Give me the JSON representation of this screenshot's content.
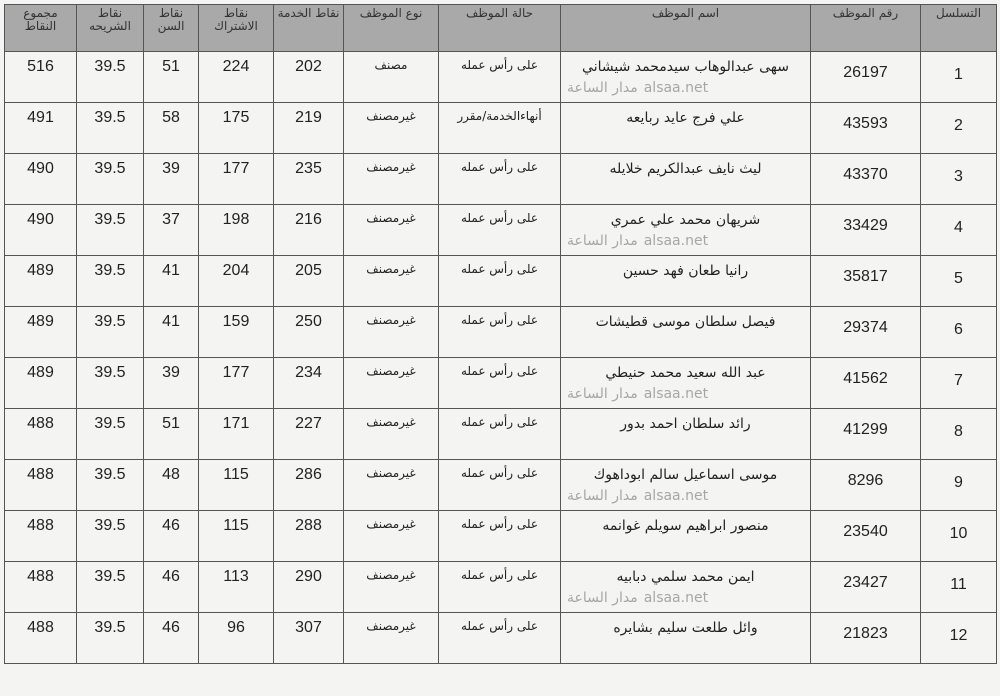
{
  "headers": {
    "serial": "التسلسل",
    "employee_id": "رقم الموظف",
    "employee_name": "اسم الموظف",
    "employee_status": "حالة الموظف",
    "employee_type": "نوع الموظف",
    "service_points": "نقاط الخدمة",
    "subscription_points": "نقاط الاشتراك",
    "age_points": "نقاط السن",
    "segment_points": "نقاط الشريحه",
    "total_points": "مجموع النقاط"
  },
  "rows": [
    {
      "serial": "1",
      "id": "26197",
      "name": "سهى عبدالوهاب سيدمحمد شيشاني",
      "status": "على رأس عمله",
      "type": "مصنف",
      "service": "202",
      "subscription": "224",
      "age": "51",
      "segment": "39.5",
      "total": "516"
    },
    {
      "serial": "2",
      "id": "43593",
      "name": "علي فرج عايد ربايعه",
      "status": "أنهاءالخدمة/مقرر",
      "type": "غيرمصنف",
      "service": "219",
      "subscription": "175",
      "age": "58",
      "segment": "39.5",
      "total": "491"
    },
    {
      "serial": "3",
      "id": "43370",
      "name": "ليث نايف عبدالكريم خلايله",
      "status": "على رأس عمله",
      "type": "غيرمصنف",
      "service": "235",
      "subscription": "177",
      "age": "39",
      "segment": "39.5",
      "total": "490"
    },
    {
      "serial": "4",
      "id": "33429",
      "name": "شريهان محمد علي عمري",
      "status": "على رأس عمله",
      "type": "غيرمصنف",
      "service": "216",
      "subscription": "198",
      "age": "37",
      "segment": "39.5",
      "total": "490"
    },
    {
      "serial": "5",
      "id": "35817",
      "name": "رانيا طعان فهد حسين",
      "status": "على رأس عمله",
      "type": "غيرمصنف",
      "service": "205",
      "subscription": "204",
      "age": "41",
      "segment": "39.5",
      "total": "489"
    },
    {
      "serial": "6",
      "id": "29374",
      "name": "فيصل سلطان موسى قطيشات",
      "status": "على رأس عمله",
      "type": "غيرمصنف",
      "service": "250",
      "subscription": "159",
      "age": "41",
      "segment": "39.5",
      "total": "489"
    },
    {
      "serial": "7",
      "id": "41562",
      "name": "عبد الله سعيد محمد حنيطي",
      "status": "على رأس عمله",
      "type": "غيرمصنف",
      "service": "234",
      "subscription": "177",
      "age": "39",
      "segment": "39.5",
      "total": "489"
    },
    {
      "serial": "8",
      "id": "41299",
      "name": "رائد سلطان احمد بدور",
      "status": "على رأس عمله",
      "type": "غيرمصنف",
      "service": "227",
      "subscription": "171",
      "age": "51",
      "segment": "39.5",
      "total": "488"
    },
    {
      "serial": "9",
      "id": "8296",
      "name": "موسى اسماعيل سالم ابوداهوك",
      "status": "على رأس عمله",
      "type": "غيرمصنف",
      "service": "286",
      "subscription": "115",
      "age": "48",
      "segment": "39.5",
      "total": "488"
    },
    {
      "serial": "10",
      "id": "23540",
      "name": "منصور ابراهيم سويلم غوانمه",
      "status": "على رأس عمله",
      "type": "غيرمصنف",
      "service": "288",
      "subscription": "115",
      "age": "46",
      "segment": "39.5",
      "total": "488"
    },
    {
      "serial": "11",
      "id": "23427",
      "name": "ايمن محمد سلمي دبابيه",
      "status": "على رأس عمله",
      "type": "غيرمصنف",
      "service": "290",
      "subscription": "113",
      "age": "46",
      "segment": "39.5",
      "total": "488"
    },
    {
      "serial": "12",
      "id": "21823",
      "name": "وائل طلعت سليم بشايره",
      "status": "على رأس عمله",
      "type": "غيرمصنف",
      "service": "307",
      "subscription": "96",
      "age": "46",
      "segment": "39.5",
      "total": "488"
    }
  ],
  "watermark": {
    "arabic": "مدار الساعة",
    "latin": "alsaa.net"
  }
}
